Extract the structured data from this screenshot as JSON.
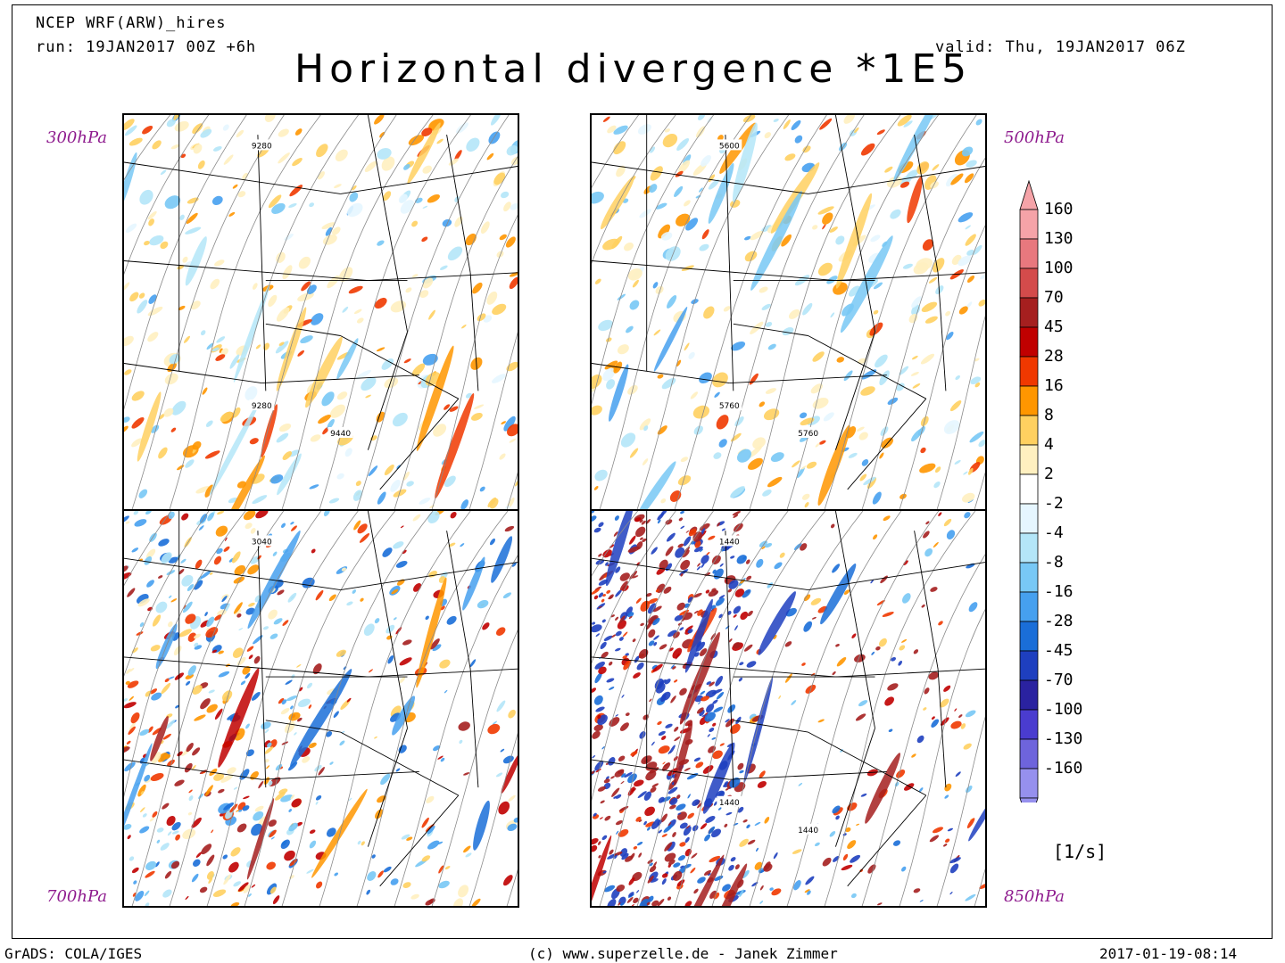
{
  "header": {
    "model": "NCEP WRF(ARW)_hires",
    "run": "run: 19JAN2017 00Z +6h",
    "valid": "valid: Thu, 19JAN2017 06Z",
    "title": "Horizontal divergence *1E5"
  },
  "panels": [
    {
      "level": "300hPa",
      "contours": [
        "9280",
        "9280",
        "9440"
      ],
      "palette": "upper"
    },
    {
      "level": "500hPa",
      "contours": [
        "5600",
        "5760",
        "5760"
      ],
      "palette": "upper"
    },
    {
      "level": "700hPa",
      "contours": [
        "3040"
      ],
      "palette": "mid"
    },
    {
      "level": "850hPa",
      "contours": [
        "1440",
        "1440",
        "1440"
      ],
      "palette": "low"
    }
  ],
  "colorbar": {
    "levels": [
      "160",
      "130",
      "100",
      "70",
      "45",
      "28",
      "16",
      "8",
      "4",
      "2",
      "-2",
      "-4",
      "-8",
      "-16",
      "-28",
      "-45",
      "-70",
      "-100",
      "-130",
      "-160"
    ],
    "colors": [
      "#f5a3a8",
      "#e8787e",
      "#d44b4b",
      "#a51f1f",
      "#c00000",
      "#f03800",
      "#ff9600",
      "#ffd060",
      "#fff0c0",
      "#ffffff",
      "#e6f6ff",
      "#b4e6f8",
      "#78c8f5",
      "#46a0ef",
      "#1a6ed8",
      "#1e3fbf",
      "#2a22a0",
      "#4a3ccf",
      "#6e64dc",
      "#9690ee"
    ],
    "units": "[1/s]"
  },
  "footer": {
    "left": "GrADS: COLA/IGES",
    "center": "(c) www.superzelle.de - Janek Zimmer",
    "right": "2017-01-19-08:14"
  }
}
